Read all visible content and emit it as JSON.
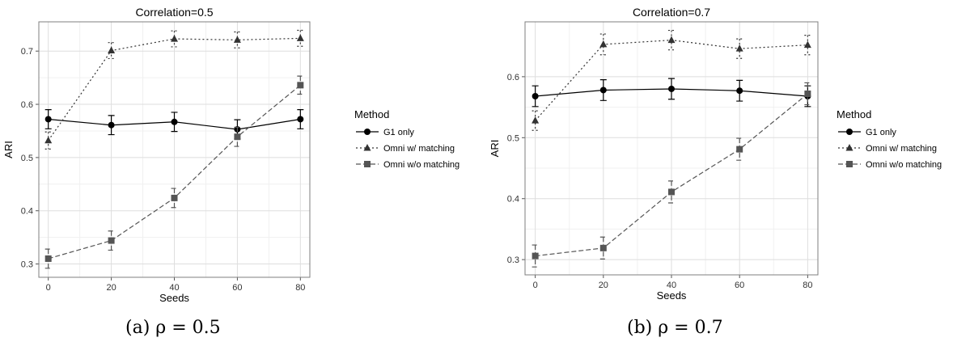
{
  "chart_data": [
    {
      "type": "line",
      "title": "Correlation=0.5",
      "xlabel": "Seeds",
      "ylabel": "ARI",
      "x": [
        0,
        20,
        40,
        60,
        80
      ],
      "xticks": [
        "0",
        "20",
        "40",
        "60",
        "80"
      ],
      "yticks": [
        "0.3",
        "0.4",
        "0.5",
        "0.6",
        "0.7"
      ],
      "xlim": [
        -3,
        83
      ],
      "ylim": [
        0.275,
        0.755
      ],
      "grid": true,
      "legend_title": "Method",
      "legend_position": "right",
      "series": [
        {
          "name": "G1 only",
          "marker": "circle",
          "linestyle": "solid",
          "values": [
            0.572,
            0.561,
            0.567,
            0.553,
            0.572
          ],
          "err": [
            0.018,
            0.018,
            0.018,
            0.018,
            0.018
          ]
        },
        {
          "name": "Omni w/ matching",
          "marker": "triangle",
          "linestyle": "dotted",
          "values": [
            0.532,
            0.701,
            0.723,
            0.721,
            0.724
          ],
          "err": [
            0.016,
            0.015,
            0.015,
            0.015,
            0.015
          ]
        },
        {
          "name": "Omni w/o matching",
          "marker": "square",
          "linestyle": "dashed",
          "values": [
            0.31,
            0.344,
            0.424,
            0.539,
            0.636
          ],
          "err": [
            0.018,
            0.018,
            0.018,
            0.018,
            0.017
          ]
        }
      ],
      "caption": "(a) ρ = 0.5"
    },
    {
      "type": "line",
      "title": "Correlation=0.7",
      "xlabel": "Seeds",
      "ylabel": "ARI",
      "x": [
        0,
        20,
        40,
        60,
        80
      ],
      "xticks": [
        "0",
        "20",
        "40",
        "60",
        "80"
      ],
      "yticks": [
        "0.3",
        "0.4",
        "0.5",
        "0.6"
      ],
      "xlim": [
        -3,
        83
      ],
      "ylim": [
        0.275,
        0.69
      ],
      "grid": true,
      "legend_title": "Method",
      "legend_position": "right",
      "series": [
        {
          "name": "G1 only",
          "marker": "circle",
          "linestyle": "solid",
          "values": [
            0.568,
            0.578,
            0.58,
            0.577,
            0.568
          ],
          "err": [
            0.017,
            0.017,
            0.017,
            0.017,
            0.017
          ]
        },
        {
          "name": "Omni w/ matching",
          "marker": "triangle",
          "linestyle": "dotted",
          "values": [
            0.528,
            0.653,
            0.66,
            0.646,
            0.652
          ],
          "err": [
            0.016,
            0.017,
            0.016,
            0.016,
            0.016
          ]
        },
        {
          "name": "Omni w/o matching",
          "marker": "square",
          "linestyle": "dashed",
          "values": [
            0.306,
            0.319,
            0.411,
            0.481,
            0.572
          ],
          "err": [
            0.018,
            0.018,
            0.018,
            0.018,
            0.018
          ]
        }
      ],
      "caption": "(b) ρ = 0.7"
    }
  ]
}
